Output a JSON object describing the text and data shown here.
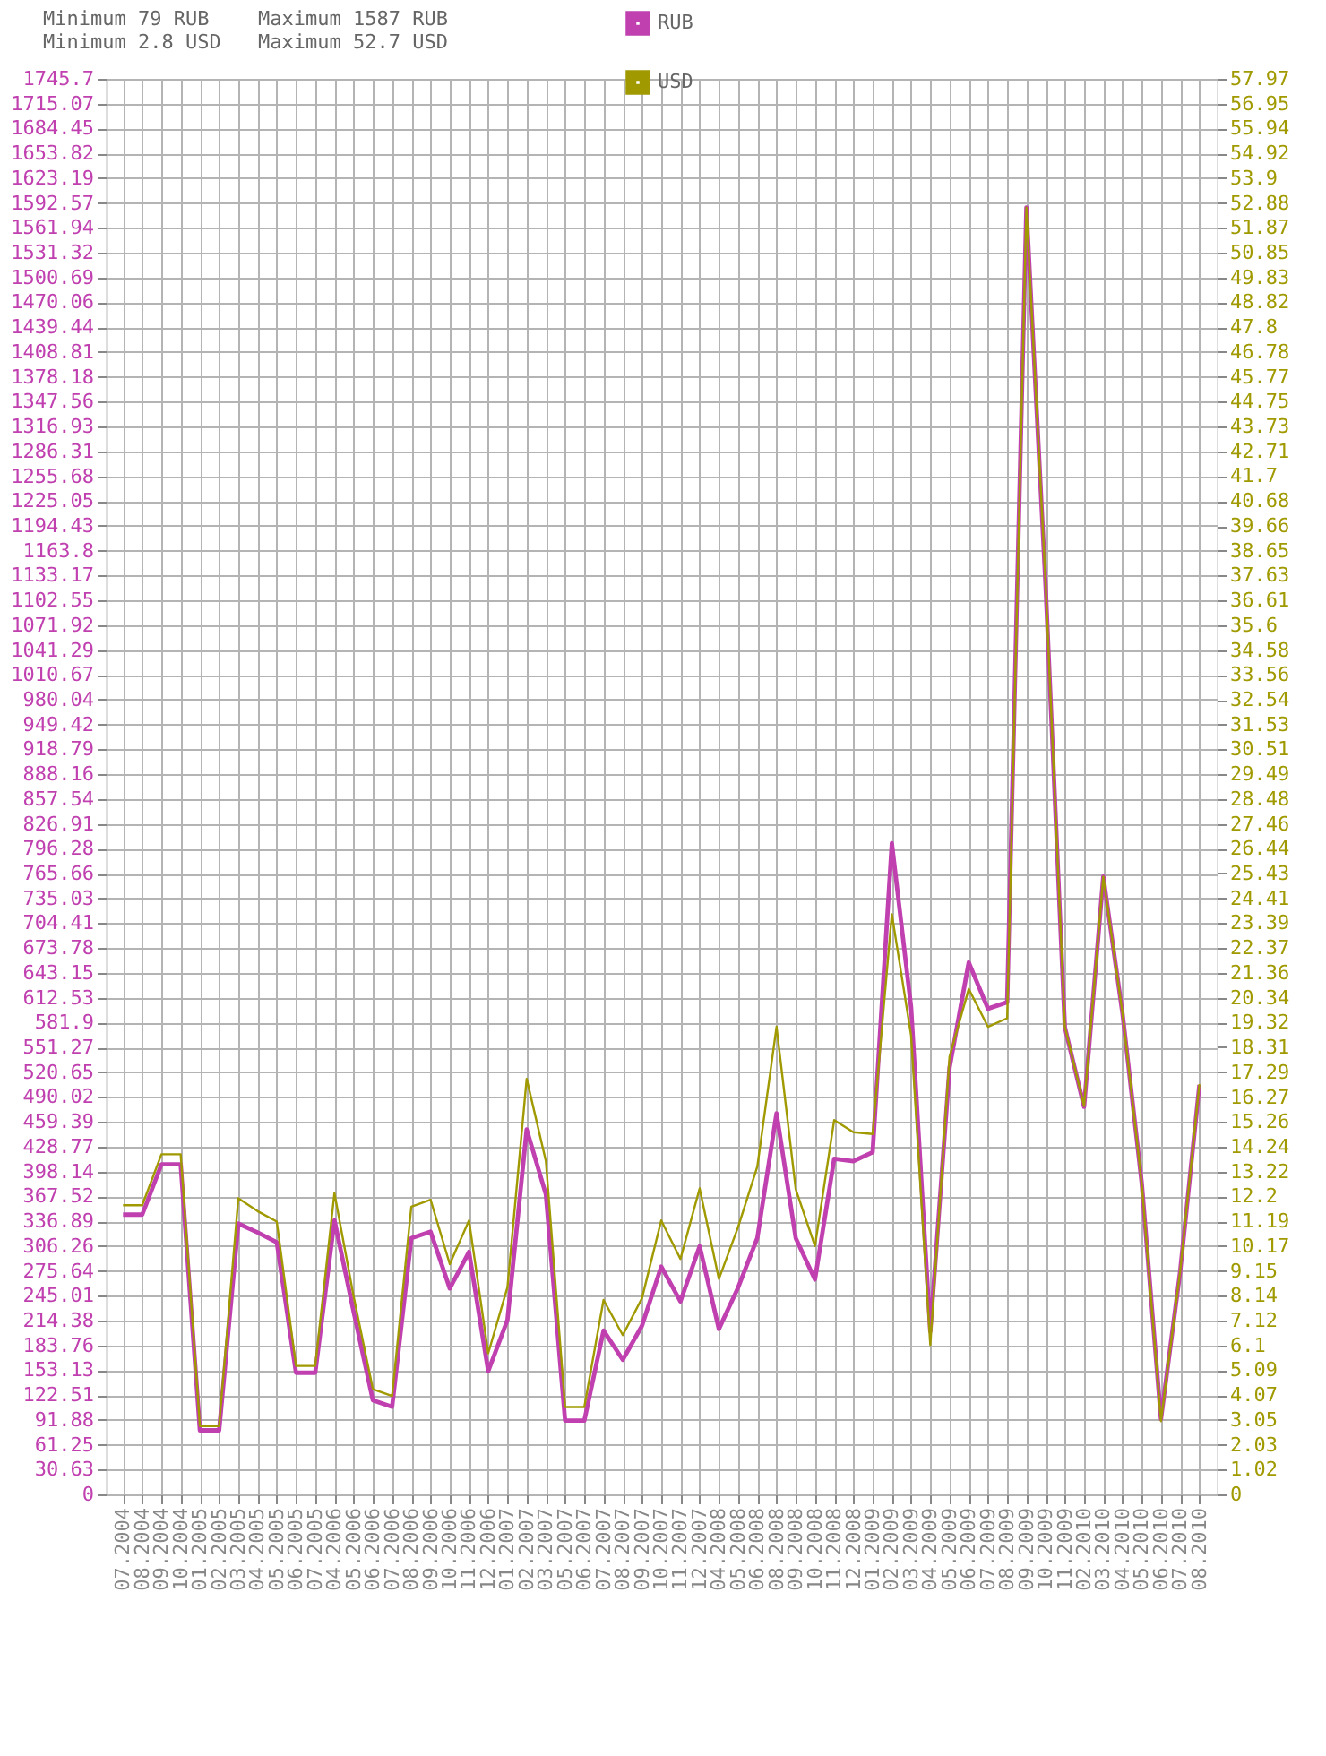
{
  "chart_data": {
    "type": "line",
    "categories": [
      "07.2004",
      "08.2004",
      "09.2004",
      "10.2004",
      "01.2005",
      "02.2005",
      "03.2005",
      "04.2005",
      "05.2005",
      "06.2005",
      "07.2005",
      "04.2006",
      "05.2006",
      "06.2006",
      "07.2006",
      "08.2006",
      "09.2006",
      "10.2006",
      "11.2006",
      "12.2006",
      "01.2007",
      "02.2007",
      "03.2007",
      "05.2007",
      "06.2007",
      "07.2007",
      "08.2007",
      "09.2007",
      "10.2007",
      "11.2007",
      "12.2007",
      "04.2008",
      "05.2008",
      "06.2008",
      "08.2008",
      "09.2008",
      "10.2008",
      "11.2008",
      "12.2008",
      "01.2009",
      "02.2009",
      "03.2009",
      "04.2009",
      "05.2009",
      "06.2009",
      "07.2009",
      "08.2009",
      "09.2009",
      "10.2009",
      "11.2009",
      "02.2010",
      "03.2010",
      "04.2010",
      "05.2010",
      "06.2010",
      "07.2010",
      "08.2010"
    ],
    "series": [
      {
        "name": "RUB",
        "color": "#c040b0",
        "values": [
          345,
          345,
          407,
          407,
          79,
          79,
          334,
          323,
          311,
          150,
          150,
          338,
          225,
          116,
          108,
          316,
          324,
          254,
          299,
          152,
          215,
          450,
          370,
          91,
          91,
          202,
          166,
          208,
          281,
          238,
          306,
          204,
          255,
          316,
          470,
          316,
          265,
          414,
          411,
          422,
          803,
          601,
          201,
          526,
          656,
          599,
          607,
          1587,
          1120,
          576,
          478,
          762,
          593,
          384,
          93,
          275,
          505
        ]
      },
      {
        "name": "USD",
        "color": "#a09a00",
        "axis": "y2",
        "values": [
          11.84,
          11.84,
          13.93,
          13.93,
          2.8,
          2.8,
          12.13,
          11.6,
          11.17,
          5.26,
          5.26,
          12.34,
          8.1,
          4.31,
          4.03,
          11.78,
          12.07,
          9.43,
          11.22,
          5.78,
          8.48,
          17.02,
          13.65,
          3.58,
          3.58,
          7.96,
          6.52,
          8.03,
          11.22,
          9.64,
          12.53,
          8.82,
          10.95,
          13.42,
          19.15,
          12.5,
          10.17,
          15.33,
          14.83,
          14.76,
          23.76,
          18.8,
          6.12,
          17.92,
          20.7,
          19.15,
          19.5,
          52.7,
          37.3,
          19.15,
          15.9,
          25.3,
          19.7,
          12.74,
          3.0,
          9.15,
          16.8
        ]
      }
    ],
    "ylim": [
      0,
      1745.7
    ],
    "yticks": [
      0,
      30.63,
      61.25,
      91.88,
      122.51,
      153.13,
      183.76,
      214.38,
      245.01,
      275.64,
      306.26,
      336.89,
      367.52,
      398.14,
      428.77,
      459.39,
      490.02,
      520.65,
      551.27,
      581.9,
      612.53,
      643.15,
      673.78,
      704.41,
      735.03,
      765.66,
      796.28,
      826.91,
      857.54,
      888.16,
      918.79,
      949.42,
      980.04,
      1010.67,
      1041.29,
      1071.92,
      1102.55,
      1133.17,
      1163.8,
      1194.43,
      1225.05,
      1255.68,
      1286.31,
      1316.93,
      1347.56,
      1378.18,
      1408.81,
      1439.44,
      1470.06,
      1500.69,
      1531.32,
      1561.94,
      1592.57,
      1623.19,
      1653.82,
      1684.45,
      1715.07,
      1745.7
    ],
    "y2lim": [
      0,
      57.97
    ],
    "y2ticks": [
      0,
      1.02,
      2.03,
      3.05,
      4.07,
      5.09,
      6.1,
      7.12,
      8.14,
      9.15,
      10.17,
      11.19,
      12.2,
      13.22,
      14.24,
      15.26,
      16.27,
      17.29,
      18.31,
      19.32,
      20.34,
      21.36,
      22.37,
      23.39,
      24.41,
      25.43,
      26.44,
      27.46,
      28.48,
      29.49,
      30.51,
      31.53,
      32.54,
      33.56,
      34.58,
      35.6,
      36.61,
      37.63,
      38.65,
      39.66,
      40.68,
      41.7,
      42.71,
      43.73,
      44.75,
      45.77,
      46.78,
      47.8,
      48.82,
      49.83,
      50.85,
      51.87,
      52.88,
      53.9,
      54.92,
      55.94,
      56.95,
      57.97
    ],
    "grid": true,
    "legend": "top",
    "annotations": [
      "Minimum 79 RUB",
      "Minimum 2.8 USD",
      "Maximum 1587 RUB",
      "Maximum 52.7 USD"
    ]
  }
}
